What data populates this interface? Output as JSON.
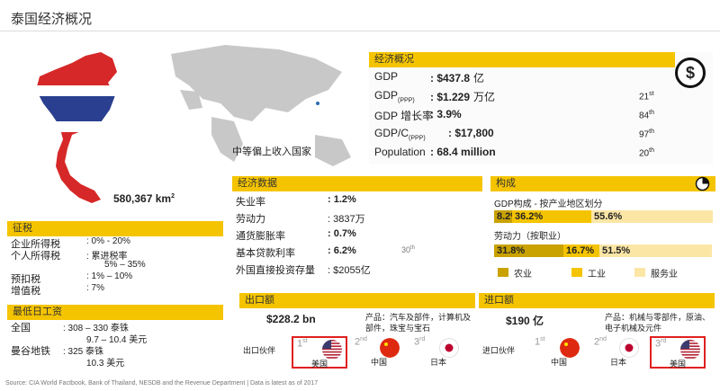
{
  "title": "泰国经济概况",
  "map": {
    "area": "580,367 km",
    "area_sup": "2",
    "income_label": "中等偏上收入国家"
  },
  "economy": {
    "header": "经济概况",
    "rows": [
      {
        "label": "GDP",
        "sub": "",
        "value": ": $437.8",
        "unit": "亿",
        "rank": "",
        "rank_sup": ""
      },
      {
        "label": "GDP",
        "sub": "(PPP)",
        "value": ": $1.229",
        "unit": "万亿",
        "rank": "21",
        "rank_sup": "st"
      },
      {
        "label": "GDP 增长率",
        "sub": "",
        "value": ": 3.9%",
        "unit": "",
        "rank": "84",
        "rank_sup": "th"
      },
      {
        "label": "GDP/C",
        "sub": "(PPP)",
        "value": ": $17,800",
        "unit": "",
        "rank": "97",
        "rank_sup": "th"
      },
      {
        "label": "Population",
        "sub": "",
        "value": ": 68.4 million",
        "unit": "",
        "rank": "20",
        "rank_sup": "th"
      }
    ]
  },
  "econ_data": {
    "header": "经济数据",
    "rows": [
      {
        "label": "失业率",
        "value": ": 1.2%",
        "note": ""
      },
      {
        "label": "劳动力",
        "value": ": 3837万",
        "note": ""
      },
      {
        "label": "通货膨胀率",
        "value": ": 0.7%",
        "note": ""
      },
      {
        "label": "基本贷款利率",
        "value": ": 6.2%",
        "note": "30"
      },
      {
        "label": "外国直接投资存量",
        "value": ": $2055亿",
        "note": ""
      }
    ],
    "note_sup": "th"
  },
  "composition": {
    "header": "构成",
    "gdp_label": "GDP构成 - 按产业地区划分",
    "labor_label": "劳动力（按职业）",
    "gdp": [
      8.2,
      36.2,
      55.6
    ],
    "gdp_labels": [
      "8.2%",
      "36.2%",
      "55.6%"
    ],
    "labor": [
      31.8,
      16.7,
      51.5
    ],
    "labor_labels": [
      "31.8%",
      "16.7%",
      "51.5%"
    ],
    "legend": [
      "农业",
      "工业",
      "服务业"
    ],
    "colors": [
      "#c9a200",
      "#f5c400",
      "#fbe6a6"
    ]
  },
  "tax": {
    "header": "征税",
    "rows": [
      {
        "label": "企业所得税",
        "value": ":  0% - 20%"
      },
      {
        "label": "个人所得税",
        "value": ":  累进税率"
      },
      {
        "label": "",
        "value": "5% – 35%"
      },
      {
        "label": "预扣税",
        "value": ":  1% – 10%"
      },
      {
        "label": "增值税",
        "value": ":  7%"
      }
    ]
  },
  "wage": {
    "header": "最低日工资",
    "rows": [
      {
        "label": "全国",
        "value": ": 308 – 330 泰铢"
      },
      {
        "label": "",
        "value": "9.7 – 10.4 美元"
      },
      {
        "label": "曼谷地铁",
        "value": ": 325 泰铢"
      },
      {
        "label": "",
        "value": "10.3 美元"
      }
    ]
  },
  "export": {
    "header": "出口额",
    "amount": "$228.2 bn",
    "products": "产品：汽车及部件，计算机及部件，珠宝与宝石",
    "partner_label": "出口伙伴",
    "partners": [
      {
        "ord": "1",
        "sup": "st",
        "name": "美国",
        "flag": "us-flag-icon"
      },
      {
        "ord": "2",
        "sup": "nd",
        "name": "中国",
        "flag": "china-flag-icon"
      },
      {
        "ord": "3",
        "sup": "rd",
        "name": "日本",
        "flag": "japan-flag-icon"
      }
    ]
  },
  "import": {
    "header": "进口额",
    "amount": "$190 亿",
    "products": "产品：机械与零部件，原油、电子机械及元件",
    "partner_label": "进口伙伴",
    "partners": [
      {
        "ord": "1",
        "sup": "st",
        "name": "中国",
        "flag": "china-flag-icon"
      },
      {
        "ord": "2",
        "sup": "nd",
        "name": "日本",
        "flag": "japan-flag-icon"
      },
      {
        "ord": "3",
        "sup": "rd",
        "name": "美国",
        "flag": "us-flag-icon"
      }
    ]
  },
  "footer": "Source: CIA World Factbook, Bank of Thailand, NESDB and the Revenue Department | Data is latest as of 2017",
  "dollar_icon": "$"
}
